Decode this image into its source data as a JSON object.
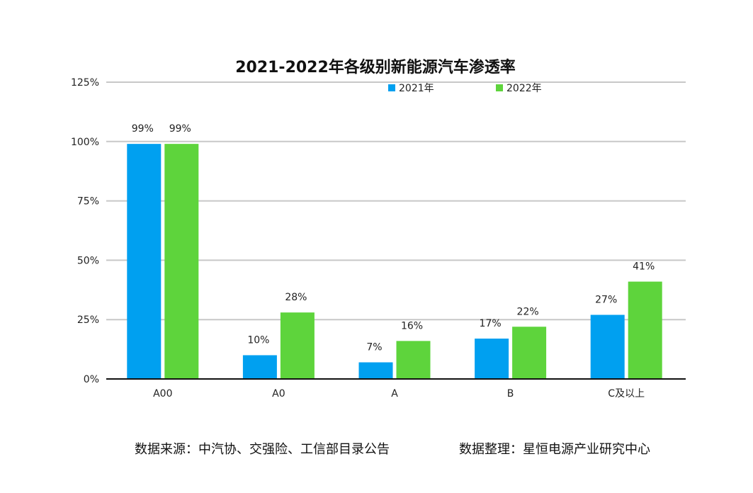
{
  "chart_data": {
    "type": "bar",
    "title": "2021-2022年各级别新能源汽车渗透率",
    "categories": [
      "A00",
      "A0",
      "A",
      "B",
      "C及以上"
    ],
    "series": [
      {
        "name": "2021年",
        "color": "#00A0F0",
        "values": [
          99,
          10,
          7,
          17,
          27
        ],
        "labels": [
          "99%",
          "10%",
          "7%",
          "17%",
          "27%"
        ]
      },
      {
        "name": "2022年",
        "color": "#5ED43C",
        "values": [
          99,
          28,
          16,
          22,
          41
        ],
        "labels": [
          "99%",
          "28%",
          "16%",
          "22%",
          "41%"
        ]
      }
    ],
    "ylim": [
      0,
      125
    ],
    "yticks": [
      0,
      25,
      50,
      75,
      100,
      125
    ],
    "ytick_labels": [
      "0%",
      "25%",
      "50%",
      "75%",
      "100%",
      "125%"
    ],
    "grid": true,
    "legend_position": "top"
  },
  "footer": {
    "source": "数据来源：中汽协、交强险、工信部目录公告",
    "compiler": "数据整理：星恒电源产业研究中心"
  },
  "colors": {
    "grid": "#c8c8c8",
    "axis": "#111111"
  }
}
